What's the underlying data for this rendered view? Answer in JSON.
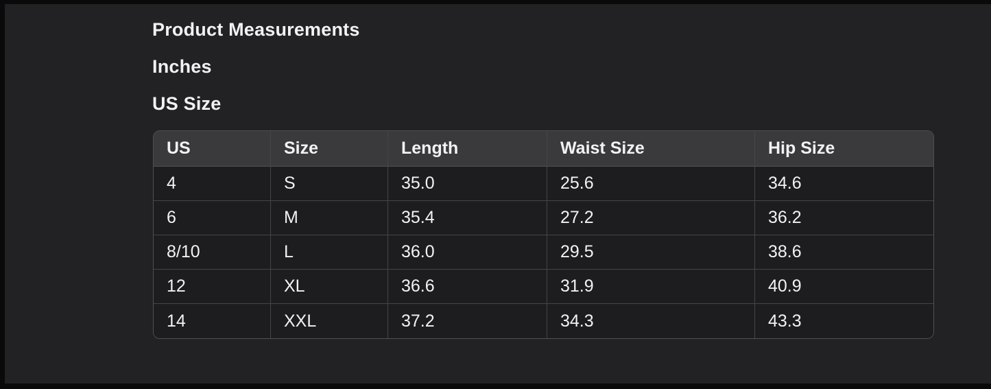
{
  "page": {
    "title": "Product Measurements",
    "unit_label": "Inches",
    "size_system_label": "US Size"
  },
  "measurements_table": {
    "columns": [
      "US",
      "Size",
      "Length",
      "Waist Size",
      "Hip Size"
    ],
    "rows": [
      [
        "4",
        "S",
        "35.0",
        "25.6",
        "34.6"
      ],
      [
        "6",
        "M",
        "35.4",
        "27.2",
        "36.2"
      ],
      [
        "8/10",
        "L",
        "36.0",
        "29.5",
        "38.6"
      ],
      [
        "12",
        "XL",
        "36.6",
        "31.9",
        "40.9"
      ],
      [
        "14",
        "XXL",
        "37.2",
        "34.3",
        "43.3"
      ]
    ]
  },
  "colors": {
    "frame": "#0a0a0b",
    "background": "#222224",
    "table_header_background": "#3a3a3c",
    "table_row_background": "#1d1d1f",
    "table_border_outer": "#505052",
    "table_border_inner": "#454547",
    "text": "#f2f2f3"
  }
}
